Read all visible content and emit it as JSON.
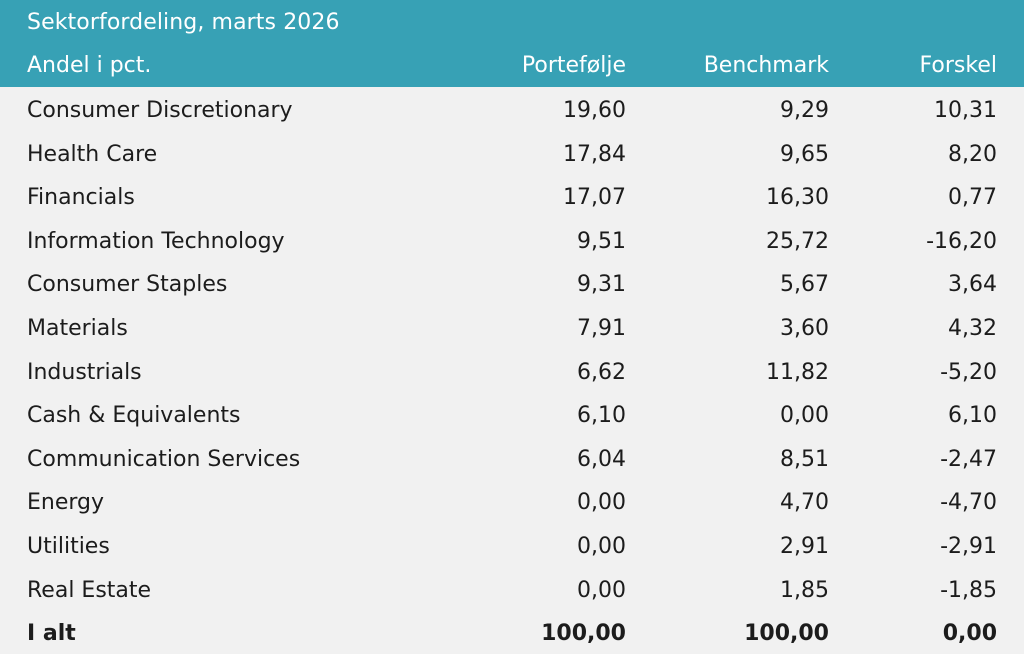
{
  "table": {
    "title": "Sektorfordeling, marts 2026",
    "columns": [
      "Andel i pct.",
      "Portefølje",
      "Benchmark",
      "Forskel"
    ],
    "rows": [
      {
        "name": "Consumer Discretionary",
        "portfolio": "19,60",
        "benchmark": "9,29",
        "diff": "10,31"
      },
      {
        "name": "Health Care",
        "portfolio": "17,84",
        "benchmark": "9,65",
        "diff": "8,20"
      },
      {
        "name": "Financials",
        "portfolio": "17,07",
        "benchmark": "16,30",
        "diff": "0,77"
      },
      {
        "name": "Information Technology",
        "portfolio": "9,51",
        "benchmark": "25,72",
        "diff": "-16,20"
      },
      {
        "name": "Consumer Staples",
        "portfolio": "9,31",
        "benchmark": "5,67",
        "diff": "3,64"
      },
      {
        "name": "Materials",
        "portfolio": "7,91",
        "benchmark": "3,60",
        "diff": "4,32"
      },
      {
        "name": "Industrials",
        "portfolio": "6,62",
        "benchmark": "11,82",
        "diff": "-5,20"
      },
      {
        "name": "Cash & Equivalents",
        "portfolio": "6,10",
        "benchmark": "0,00",
        "diff": "6,10"
      },
      {
        "name": "Communication Services",
        "portfolio": "6,04",
        "benchmark": "8,51",
        "diff": "-2,47"
      },
      {
        "name": "Energy",
        "portfolio": "0,00",
        "benchmark": "4,70",
        "diff": "-4,70"
      },
      {
        "name": "Utilities",
        "portfolio": "0,00",
        "benchmark": "2,91",
        "diff": "-2,91"
      },
      {
        "name": "Real Estate",
        "portfolio": "0,00",
        "benchmark": "1,85",
        "diff": "-1,85"
      }
    ],
    "total": {
      "name": "I alt",
      "portfolio": "100,00",
      "benchmark": "100,00",
      "diff": "0,00"
    }
  },
  "colors": {
    "header_bg": "#37a1b5",
    "header_text": "#ffffff",
    "body_bg": "#f1f1f1",
    "body_text": "#1c1c1c"
  }
}
